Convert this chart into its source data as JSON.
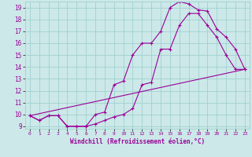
{
  "title": "",
  "xlabel": "Windchill (Refroidissement éolien,°C)",
  "bg_color": "#cce8e8",
  "grid_color": "#99cccc",
  "line_color": "#990099",
  "line1_x": [
    0,
    1,
    2,
    3,
    4,
    5,
    6,
    7,
    8,
    9,
    10,
    11,
    12,
    13,
    14,
    15,
    16,
    17,
    18,
    19,
    20,
    21,
    22,
    23
  ],
  "line1_y": [
    9.9,
    9.5,
    9.9,
    9.9,
    9.0,
    9.0,
    9.0,
    9.2,
    9.5,
    9.8,
    10.0,
    10.5,
    12.5,
    12.7,
    15.5,
    15.5,
    17.5,
    18.5,
    18.5,
    17.5,
    16.5,
    15.0,
    13.8,
    13.8
  ],
  "line2_x": [
    0,
    1,
    2,
    3,
    4,
    5,
    6,
    7,
    8,
    9,
    10,
    11,
    12,
    13,
    14,
    15,
    16,
    17,
    18,
    19,
    20,
    21,
    22,
    23
  ],
  "line2_y": [
    9.9,
    9.5,
    9.9,
    9.9,
    9.0,
    9.0,
    9.0,
    10.0,
    10.2,
    12.5,
    12.8,
    15.0,
    16.0,
    16.0,
    17.0,
    19.0,
    19.5,
    19.3,
    18.8,
    18.7,
    17.2,
    16.5,
    15.5,
    13.8
  ],
  "line3_x": [
    0,
    23
  ],
  "line3_y": [
    9.9,
    13.8
  ],
  "xlim": [
    -0.5,
    23.5
  ],
  "ylim": [
    8.8,
    19.5
  ],
  "yticks": [
    9,
    10,
    11,
    12,
    13,
    14,
    15,
    16,
    17,
    18,
    19
  ],
  "xticks": [
    0,
    1,
    2,
    3,
    4,
    5,
    6,
    7,
    8,
    9,
    10,
    11,
    12,
    13,
    14,
    15,
    16,
    17,
    18,
    19,
    20,
    21,
    22,
    23
  ]
}
